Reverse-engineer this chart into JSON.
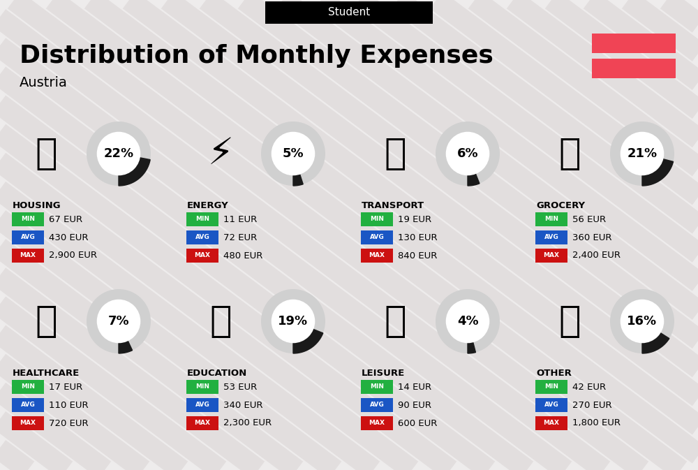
{
  "title": "Distribution of Monthly Expenses",
  "subtitle": "Austria",
  "header_label": "Student",
  "bg_color": "#eeecec",
  "categories": [
    {
      "name": "HOUSING",
      "pct": 22,
      "min_val": "67 EUR",
      "avg_val": "430 EUR",
      "max_val": "2,900 EUR",
      "row": 0,
      "col": 0
    },
    {
      "name": "ENERGY",
      "pct": 5,
      "min_val": "11 EUR",
      "avg_val": "72 EUR",
      "max_val": "480 EUR",
      "row": 0,
      "col": 1
    },
    {
      "name": "TRANSPORT",
      "pct": 6,
      "min_val": "19 EUR",
      "avg_val": "130 EUR",
      "max_val": "840 EUR",
      "row": 0,
      "col": 2
    },
    {
      "name": "GROCERY",
      "pct": 21,
      "min_val": "56 EUR",
      "avg_val": "360 EUR",
      "max_val": "2,400 EUR",
      "row": 0,
      "col": 3
    },
    {
      "name": "HEALTHCARE",
      "pct": 7,
      "min_val": "17 EUR",
      "avg_val": "110 EUR",
      "max_val": "720 EUR",
      "row": 1,
      "col": 0
    },
    {
      "name": "EDUCATION",
      "pct": 19,
      "min_val": "53 EUR",
      "avg_val": "340 EUR",
      "max_val": "2,300 EUR",
      "row": 1,
      "col": 1
    },
    {
      "name": "LEISURE",
      "pct": 4,
      "min_val": "14 EUR",
      "avg_val": "90 EUR",
      "max_val": "600 EUR",
      "row": 1,
      "col": 2
    },
    {
      "name": "OTHER",
      "pct": 16,
      "min_val": "42 EUR",
      "avg_val": "270 EUR",
      "max_val": "1,800 EUR",
      "row": 1,
      "col": 3
    }
  ],
  "min_color": "#22b040",
  "avg_color": "#1a56c4",
  "max_color": "#cc1111",
  "circle_bg": "#d0d0d0",
  "circle_dark": "#1a1a1a",
  "austria_red": "#f04455",
  "stripe_color": "#e2dede",
  "stripe_alpha": 1.0
}
